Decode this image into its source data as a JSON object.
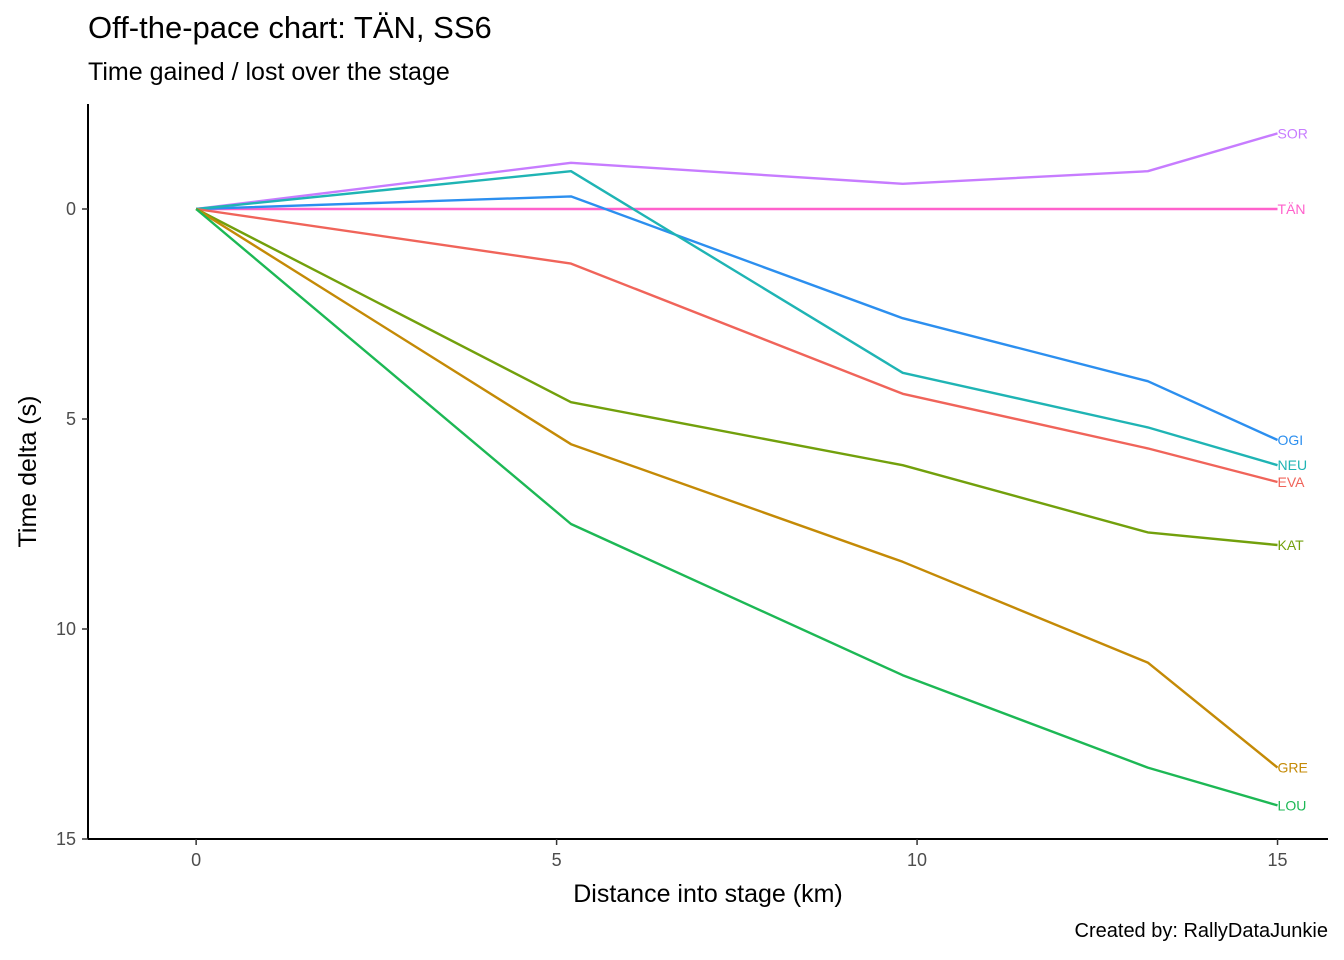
{
  "chart_data": {
    "type": "line",
    "title": "Off-the-pace chart: TÄN, SS6",
    "subtitle": "Time gained / lost over the stage",
    "caption": "Created by: RallyDataJunkie",
    "xlabel": "Distance into stage (km)",
    "ylabel": "Time delta (s)",
    "xlim": [
      -1.5,
      15.7
    ],
    "ylim": [
      -2.5,
      15
    ],
    "y_reversed": true,
    "x_ticks": [
      0,
      5,
      10,
      15
    ],
    "y_ticks": [
      0,
      5,
      10,
      15
    ],
    "grid": false,
    "legend": "none (series labelled at line ends)",
    "x": [
      0,
      5.2,
      9.8,
      13.2,
      15
    ],
    "series": [
      {
        "name": "SOR",
        "color": "#C77CFF",
        "values": [
          0,
          -1.1,
          -0.6,
          -0.9,
          -1.8
        ]
      },
      {
        "name": "TÄN",
        "color": "#FF61CC",
        "values": [
          0,
          0,
          0,
          0,
          0
        ]
      },
      {
        "name": "OGI",
        "color": "#2C8FEF",
        "values": [
          0,
          -0.3,
          2.6,
          4.1,
          5.5
        ]
      },
      {
        "name": "NEU",
        "color": "#1FB4B4",
        "values": [
          0,
          -0.9,
          3.9,
          5.2,
          6.1
        ]
      },
      {
        "name": "EVA",
        "color": "#F0645A",
        "values": [
          0,
          1.3,
          4.4,
          5.7,
          6.5
        ]
      },
      {
        "name": "KAT",
        "color": "#72A00C",
        "values": [
          0,
          4.6,
          6.1,
          7.7,
          8.0
        ]
      },
      {
        "name": "GRE",
        "color": "#C48A06",
        "values": [
          0,
          5.6,
          8.4,
          10.8,
          13.3
        ]
      },
      {
        "name": "LOU",
        "color": "#1DB855",
        "values": [
          0,
          7.5,
          11.1,
          13.3,
          14.2
        ]
      }
    ]
  }
}
